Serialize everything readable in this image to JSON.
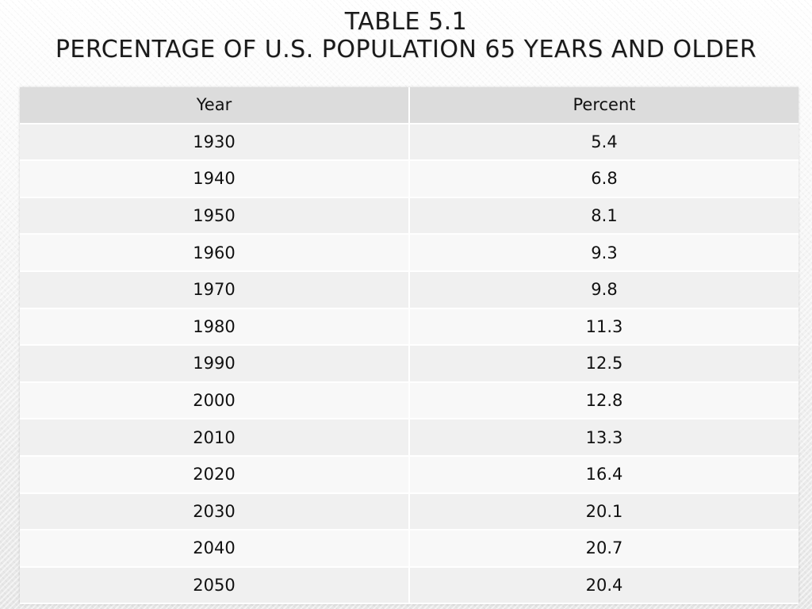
{
  "slide": {
    "title_line1": "Table 5.1",
    "title_line2": "Percentage of U.S. Population 65 Years and Older"
  },
  "table": {
    "headers": [
      "Year",
      "Percent"
    ],
    "rows": [
      [
        "1930",
        "5.4"
      ],
      [
        "1940",
        "6.8"
      ],
      [
        "1950",
        "8.1"
      ],
      [
        "1960",
        "9.3"
      ],
      [
        "1970",
        "9.8"
      ],
      [
        "1980",
        "11.3"
      ],
      [
        "1990",
        "12.5"
      ],
      [
        "2000",
        "12.8"
      ],
      [
        "2010",
        "13.3"
      ],
      [
        "2020",
        "16.4"
      ],
      [
        "2030",
        "20.1"
      ],
      [
        "2040",
        "20.7"
      ],
      [
        "2050",
        "20.4"
      ]
    ]
  }
}
